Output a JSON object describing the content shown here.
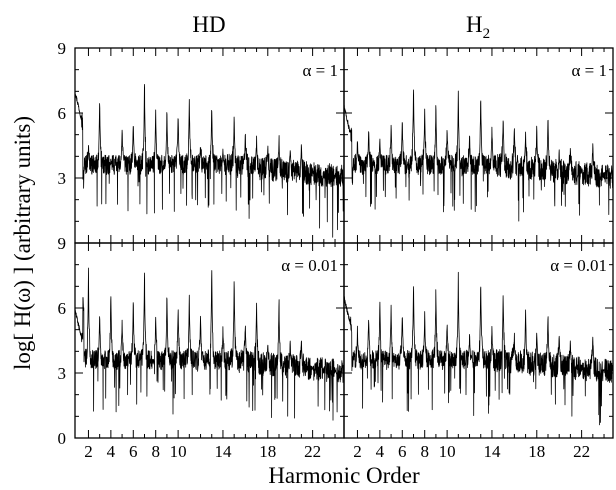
{
  "chart_data": {
    "type": "line",
    "xlabel": "Harmonic Order",
    "ylabel": "log[ H(ω) ] (arbitrary units)",
    "columns": [
      {
        "title_main": "HD",
        "title_sub": ""
      },
      {
        "title_main": "H",
        "title_sub": "2"
      }
    ],
    "xlim": [
      0.8,
      24.8
    ],
    "ylim": [
      0,
      9
    ],
    "x_ticks": [
      2,
      4,
      6,
      8,
      10,
      14,
      18,
      22
    ],
    "x_minor_ticks": [
      3,
      5,
      7,
      9,
      11,
      12,
      13,
      15,
      16,
      17,
      19,
      20,
      21,
      23,
      24
    ],
    "y_ticks_top": [
      "9",
      "6",
      "3"
    ],
    "y_ticks_bottom": [
      "9",
      "6",
      "3",
      "0"
    ],
    "grid": false,
    "panels": [
      {
        "row": "top",
        "column": "HD",
        "label": "α = 1",
        "series": {
          "x": [
            0.8,
            1,
            2,
            3,
            4,
            5,
            6,
            7,
            8,
            9,
            10,
            11,
            12,
            13,
            14,
            15,
            16,
            17,
            18,
            19,
            20,
            21,
            22,
            23,
            24,
            24.8
          ],
          "y": [
            7.6,
            7.0,
            4.6,
            6.6,
            3.8,
            5.3,
            5.6,
            7.7,
            6.2,
            6.4,
            6.0,
            6.8,
            4.6,
            6.5,
            4.3,
            6.0,
            5.1,
            4.9,
            4.5,
            5.0,
            4.4,
            4.5,
            3.3,
            3.1,
            2.4,
            2.0
          ]
        }
      },
      {
        "row": "top",
        "column": "H2",
        "label": "α = 1",
        "series": {
          "x": [
            0.8,
            1,
            2,
            3,
            4,
            5,
            6,
            7,
            8,
            9,
            10,
            11,
            12,
            13,
            14,
            15,
            16,
            17,
            18,
            19,
            20,
            21,
            22,
            23,
            24,
            24.8
          ],
          "y": [
            6.3,
            6.3,
            4.8,
            5.2,
            4.8,
            5.6,
            5.7,
            7.6,
            6.2,
            6.5,
            5.4,
            7.0,
            5.0,
            6.9,
            5.4,
            6.0,
            5.5,
            5.2,
            5.4,
            6.0,
            4.2,
            4.5,
            3.4,
            4.6,
            2.2,
            2.2
          ]
        }
      },
      {
        "row": "bottom",
        "column": "HD",
        "label": "α = 0.01",
        "series": {
          "x": [
            0.8,
            1,
            2,
            3,
            4,
            5,
            6,
            7,
            8,
            9,
            10,
            11,
            12,
            13,
            14,
            15,
            16,
            17,
            18,
            19,
            20,
            21,
            22,
            23,
            24,
            24.8
          ],
          "y": [
            6.1,
            5.9,
            8.0,
            5.8,
            6.8,
            5.5,
            6.5,
            8.0,
            5.7,
            6.8,
            6.2,
            6.6,
            5.8,
            8.1,
            5.2,
            7.5,
            5.4,
            6.3,
            4.3,
            6.5,
            4.5,
            4.7,
            3.2,
            3.0,
            2.7,
            2.4
          ]
        }
      },
      {
        "row": "bottom",
        "column": "H2",
        "label": "α = 0.01",
        "series": {
          "x": [
            0.8,
            1,
            2,
            3,
            4,
            5,
            6,
            7,
            8,
            9,
            10,
            11,
            12,
            13,
            14,
            15,
            16,
            17,
            18,
            19,
            20,
            21,
            22,
            23,
            24,
            24.8
          ],
          "y": [
            6.6,
            6.5,
            5.0,
            5.7,
            6.5,
            6.2,
            5.9,
            7.5,
            5.7,
            7.0,
            5.5,
            7.5,
            4.8,
            7.4,
            5.2,
            6.8,
            4.8,
            5.9,
            4.9,
            6.0,
            4.8,
            4.6,
            3.1,
            4.8,
            2.3,
            2.0
          ]
        }
      }
    ]
  }
}
